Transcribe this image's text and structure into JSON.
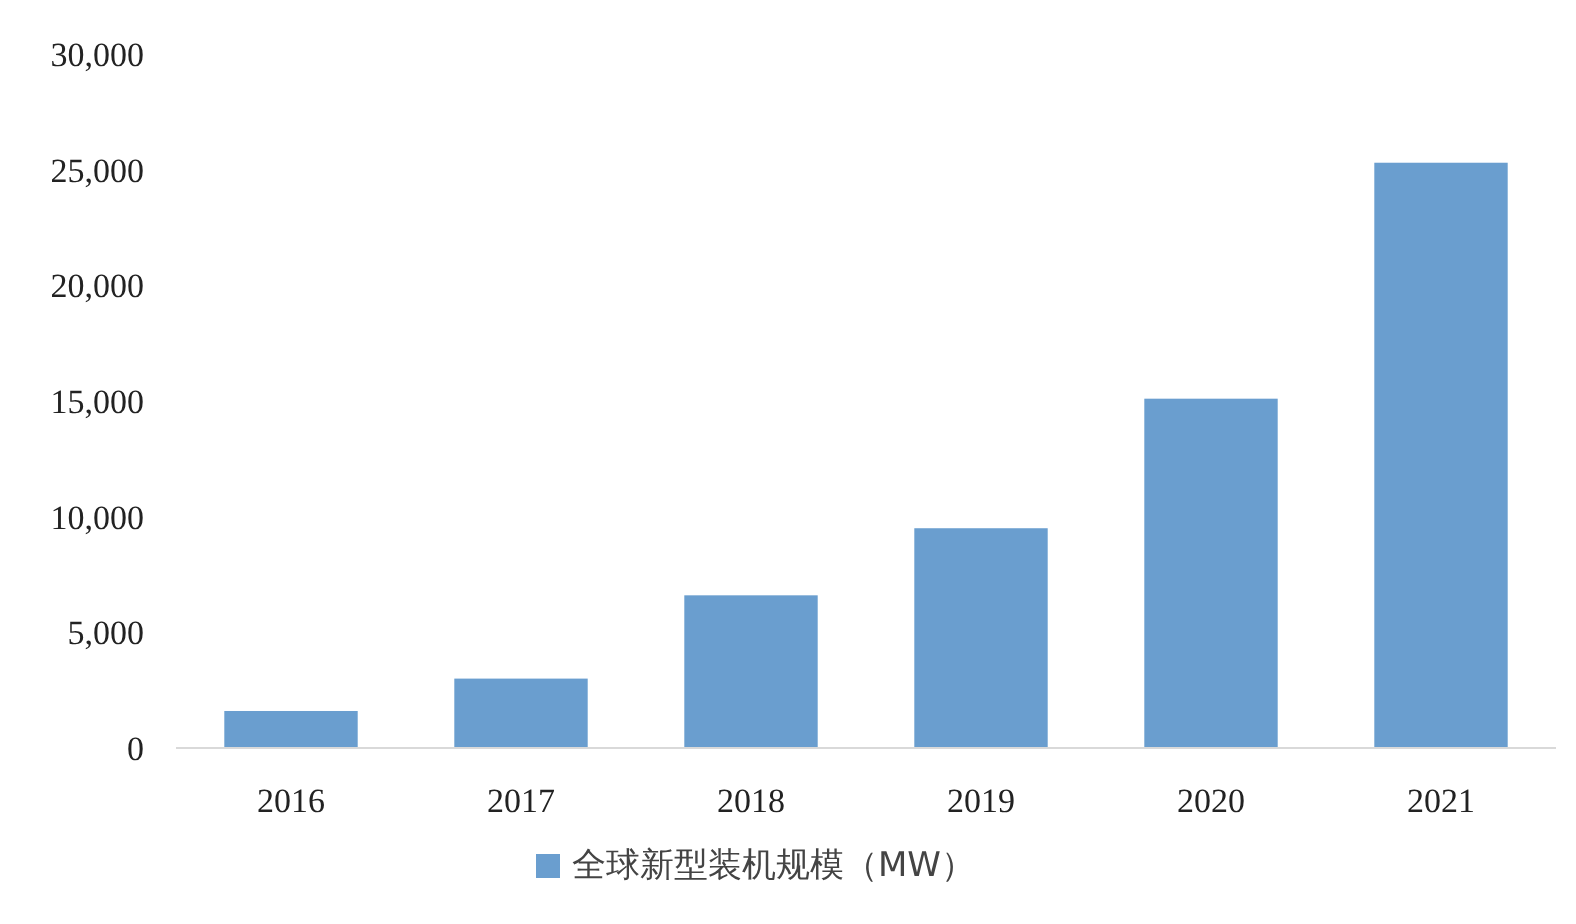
{
  "chart_data": {
    "type": "bar",
    "categories": [
      "2016",
      "2017",
      "2018",
      "2019",
      "2020",
      "2021"
    ],
    "series": [
      {
        "name": "全球新型装机规模（MW）",
        "color": "#6a9ecf",
        "values": [
          1600,
          3000,
          6600,
          9500,
          15100,
          25300
        ]
      }
    ],
    "ylim": [
      0,
      30000
    ],
    "yticks": [
      {
        "value": 0,
        "label": "0"
      },
      {
        "value": 5000,
        "label": "5,000"
      },
      {
        "value": 10000,
        "label": "10,000"
      },
      {
        "value": 15000,
        "label": "15,000"
      },
      {
        "value": 20000,
        "label": "20,000"
      },
      {
        "value": 25000,
        "label": "25,000"
      },
      {
        "value": 30000,
        "label": "30,000"
      }
    ],
    "grid": false,
    "legend": "bottom"
  }
}
